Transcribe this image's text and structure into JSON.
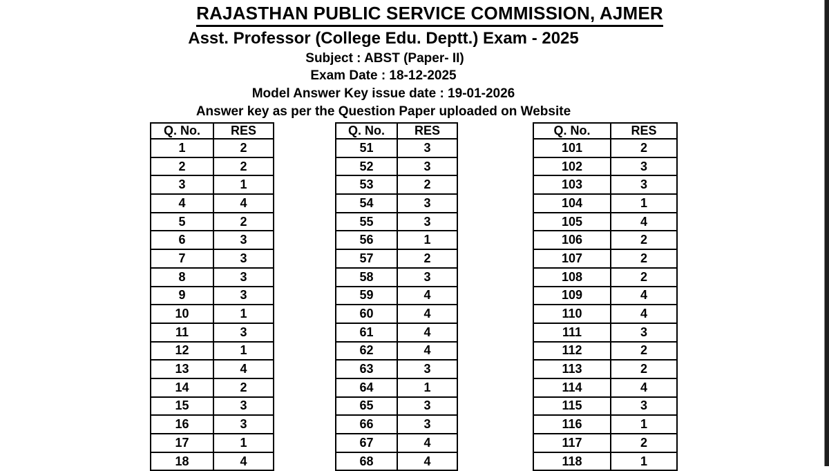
{
  "header": {
    "title": "RAJASTHAN PUBLIC SERVICE COMMISSION, AJMER",
    "exam_line": "Asst. Professor (College Edu. Deptt.) Exam - 2025",
    "subject_line": "Subject : ABST (Paper- II)",
    "exam_date_line": "Exam Date : 18-12-2025",
    "issue_date_line": "Model Answer Key issue date : 19-01-2026",
    "note_line": "Answer key as per the Question Paper uploaded on Website"
  },
  "table_headers": {
    "qno": "Q. No.",
    "res": "RES"
  },
  "tables": [
    {
      "rows": [
        {
          "qno": "1",
          "res": "2"
        },
        {
          "qno": "2",
          "res": "2"
        },
        {
          "qno": "3",
          "res": "1"
        },
        {
          "qno": "4",
          "res": "4"
        },
        {
          "qno": "5",
          "res": "2"
        },
        {
          "qno": "6",
          "res": "3"
        },
        {
          "qno": "7",
          "res": "3"
        },
        {
          "qno": "8",
          "res": "3"
        },
        {
          "qno": "9",
          "res": "3"
        },
        {
          "qno": "10",
          "res": "1"
        },
        {
          "qno": "11",
          "res": "3"
        },
        {
          "qno": "12",
          "res": "1"
        },
        {
          "qno": "13",
          "res": "4"
        },
        {
          "qno": "14",
          "res": "2"
        },
        {
          "qno": "15",
          "res": "3"
        },
        {
          "qno": "16",
          "res": "3"
        },
        {
          "qno": "17",
          "res": "1"
        },
        {
          "qno": "18",
          "res": "4"
        }
      ]
    },
    {
      "rows": [
        {
          "qno": "51",
          "res": "3"
        },
        {
          "qno": "52",
          "res": "3"
        },
        {
          "qno": "53",
          "res": "2"
        },
        {
          "qno": "54",
          "res": "3"
        },
        {
          "qno": "55",
          "res": "3"
        },
        {
          "qno": "56",
          "res": "1"
        },
        {
          "qno": "57",
          "res": "2"
        },
        {
          "qno": "58",
          "res": "3"
        },
        {
          "qno": "59",
          "res": "4"
        },
        {
          "qno": "60",
          "res": "4"
        },
        {
          "qno": "61",
          "res": "4"
        },
        {
          "qno": "62",
          "res": "4"
        },
        {
          "qno": "63",
          "res": "3"
        },
        {
          "qno": "64",
          "res": "1"
        },
        {
          "qno": "65",
          "res": "3"
        },
        {
          "qno": "66",
          "res": "3"
        },
        {
          "qno": "67",
          "res": "4"
        },
        {
          "qno": "68",
          "res": "4"
        }
      ]
    },
    {
      "rows": [
        {
          "qno": "101",
          "res": "2"
        },
        {
          "qno": "102",
          "res": "3"
        },
        {
          "qno": "103",
          "res": "3"
        },
        {
          "qno": "104",
          "res": "1"
        },
        {
          "qno": "105",
          "res": "4"
        },
        {
          "qno": "106",
          "res": "2"
        },
        {
          "qno": "107",
          "res": "2"
        },
        {
          "qno": "108",
          "res": "2"
        },
        {
          "qno": "109",
          "res": "4"
        },
        {
          "qno": "110",
          "res": "4"
        },
        {
          "qno": "111",
          "res": "3"
        },
        {
          "qno": "112",
          "res": "2"
        },
        {
          "qno": "113",
          "res": "2"
        },
        {
          "qno": "114",
          "res": "4"
        },
        {
          "qno": "115",
          "res": "3"
        },
        {
          "qno": "116",
          "res": "1"
        },
        {
          "qno": "117",
          "res": "2"
        },
        {
          "qno": "118",
          "res": "1"
        }
      ]
    }
  ],
  "colors": {
    "text": "#000000",
    "border": "#000000",
    "background": "#ffffff",
    "edge_strip": "#1f1f1f"
  }
}
